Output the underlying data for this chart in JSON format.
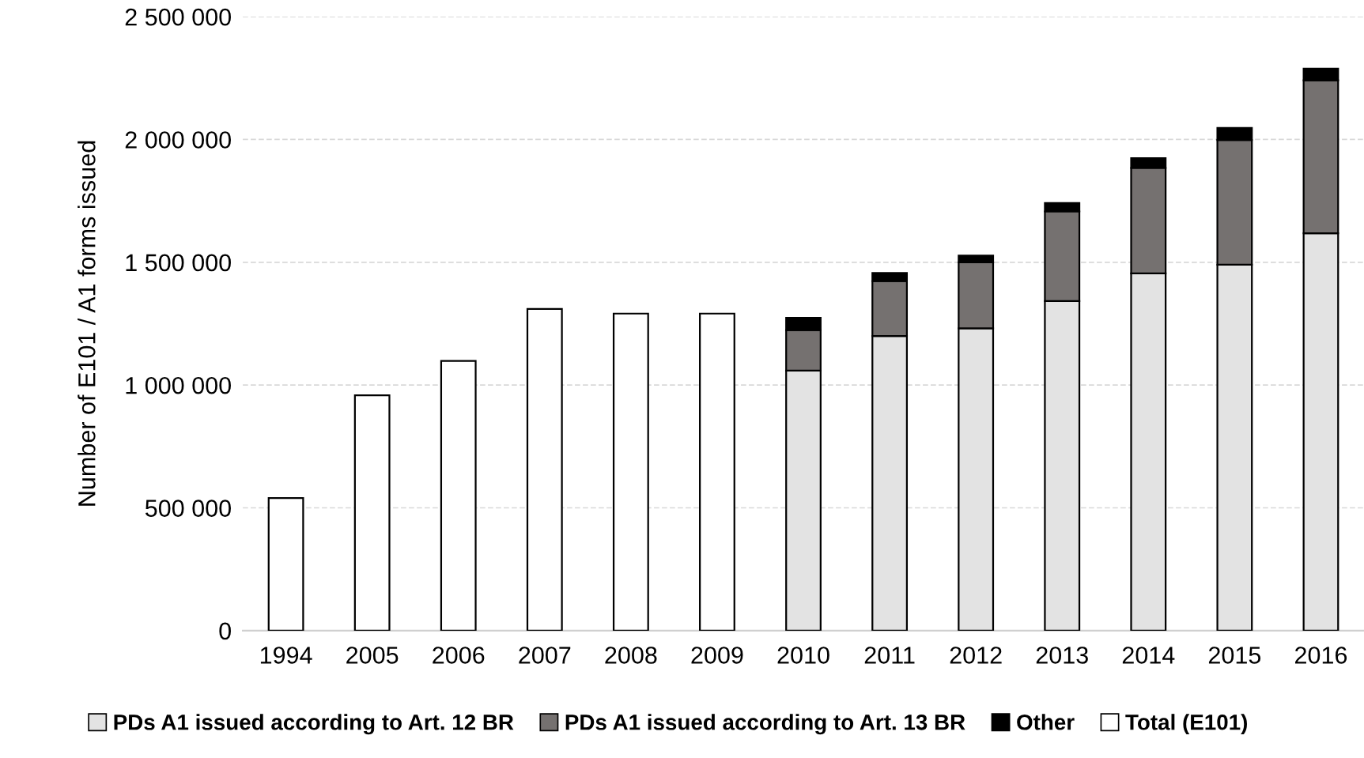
{
  "chart_data": {
    "type": "bar",
    "stacked": true,
    "ylabel": "Number of E101 / A1 forms issued",
    "categories": [
      "1994",
      "2005",
      "2006",
      "2007",
      "2008",
      "2009",
      "2010",
      "2011",
      "2012",
      "2013",
      "2014",
      "2015",
      "2016"
    ],
    "series": [
      {
        "name": "PDs A1 issued according to Art. 12 BR",
        "color": "#e3e3e3",
        "values": [
          null,
          null,
          null,
          null,
          null,
          null,
          1059000,
          1200000,
          1231000,
          1342000,
          1455000,
          1490000,
          1618000
        ]
      },
      {
        "name": "PDs A1 issued according to Art. 13 BR",
        "color": "#757170",
        "values": [
          null,
          null,
          null,
          null,
          null,
          null,
          165000,
          223000,
          269000,
          365000,
          429000,
          508000,
          623000
        ]
      },
      {
        "name": "Other",
        "color": "#000000",
        "values": [
          null,
          null,
          null,
          null,
          null,
          null,
          50000,
          33000,
          27000,
          34000,
          40000,
          49000,
          47000
        ]
      },
      {
        "name": "Total (E101)",
        "color": "#ffffff",
        "values": [
          540000,
          958000,
          1098000,
          1310000,
          1291000,
          1291000,
          null,
          null,
          null,
          null,
          null,
          null,
          null
        ]
      }
    ],
    "ylim": [
      0,
      2500000
    ],
    "yticks": [
      0,
      {
        "value": 500000,
        "label": "500 000"
      },
      {
        "value": 1000000,
        "label": "1 000 000"
      },
      {
        "value": 1500000,
        "label": "1 500 000"
      },
      {
        "value": 2000000,
        "label": "2 000 000"
      },
      {
        "value": 2500000,
        "label": "2 500 000"
      }
    ],
    "grid": "y",
    "legend": "bottom"
  }
}
